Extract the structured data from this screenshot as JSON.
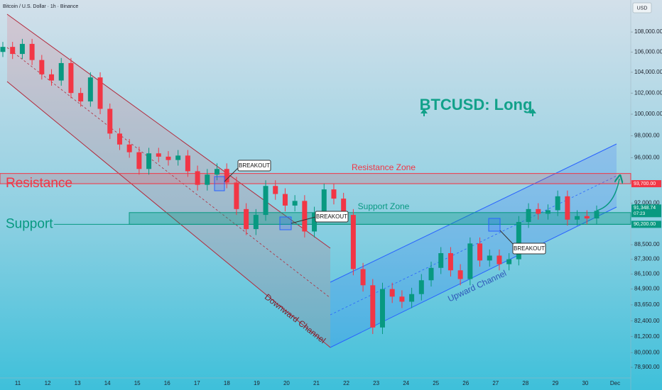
{
  "chart_data": {
    "type": "candlestick",
    "title": "Bitcoin / U.S. Dollar · 1h · Binance",
    "currency": "USD",
    "headline": "BTCUSD: Long",
    "log_scale": true,
    "categories": [
      "11",
      "12",
      "13",
      "14",
      "15",
      "16",
      "17",
      "18",
      "19",
      "20",
      "21",
      "22",
      "23",
      "24",
      "25",
      "26",
      "27",
      "28",
      "29",
      "30",
      "Dec"
    ],
    "ylim": [
      78120,
      111280
    ],
    "yticks": [
      {
        "value": 108000,
        "label": "108,000.00"
      },
      {
        "value": 106000,
        "label": "106,000.00"
      },
      {
        "value": 104000,
        "label": "104,000.00"
      },
      {
        "value": 102000,
        "label": "102,000.00"
      },
      {
        "value": 100000,
        "label": "100,000.00"
      },
      {
        "value": 98000,
        "label": "98,000.00"
      },
      {
        "value": 96000,
        "label": "96,000.00"
      },
      {
        "value": 92000,
        "label": "92,000.00"
      },
      {
        "value": 88500,
        "label": "88,500.00"
      },
      {
        "value": 87300,
        "label": "87,300.00"
      },
      {
        "value": 86100,
        "label": "86,100.00"
      },
      {
        "value": 84900,
        "label": "84,900.00"
      },
      {
        "value": 83650,
        "label": "83,650.00"
      },
      {
        "value": 82400,
        "label": "82,400.00"
      },
      {
        "value": 81200,
        "label": "81,200.00"
      },
      {
        "value": 80000,
        "label": "80,000.00"
      },
      {
        "value": 78900,
        "label": "78,900.00"
      }
    ],
    "up_color": "#089981",
    "down_color": "#f23645",
    "open": [
      106000,
      106500,
      105800,
      106800,
      105200,
      103800,
      103200,
      104900,
      102000,
      101200,
      103500,
      100500,
      98200,
      97200,
      96500,
      95000,
      96400,
      96100,
      95800,
      96200,
      94800,
      93600,
      94500,
      95000,
      93800,
      91500,
      89800,
      91000,
      93500,
      92800,
      91800,
      92200,
      89600,
      91200,
      93200,
      92400,
      91000,
      86500,
      85200,
      81900,
      84900,
      84300,
      83900,
      84500,
      85600,
      86600,
      87800,
      86400,
      85700,
      88600,
      87200,
      87600,
      86900,
      87300,
      90400,
      91500,
      91100,
      91400,
      92600,
      90600,
      90900,
      90700
    ],
    "high": [
      107000,
      107000,
      107300,
      107300,
      105700,
      104300,
      105400,
      105400,
      102500,
      104000,
      104000,
      101000,
      98700,
      97700,
      97000,
      96900,
      96900,
      96600,
      96700,
      96700,
      95300,
      95000,
      95500,
      95500,
      94300,
      92000,
      91500,
      94000,
      94000,
      93300,
      92700,
      92700,
      91700,
      93700,
      93700,
      92900,
      91500,
      87000,
      85700,
      85400,
      85400,
      84800,
      85000,
      86100,
      87100,
      88300,
      88300,
      86900,
      89100,
      89100,
      88100,
      88100,
      87800,
      90900,
      92000,
      92000,
      91900,
      93100,
      93100,
      91400,
      91400,
      91800
    ],
    "low": [
      105500,
      105300,
      105300,
      104700,
      103300,
      102700,
      102700,
      101500,
      100700,
      100700,
      100000,
      97700,
      96700,
      96000,
      94500,
      94500,
      95600,
      95300,
      95300,
      94300,
      93100,
      93100,
      94000,
      93300,
      91000,
      89300,
      89300,
      90500,
      92300,
      91300,
      91300,
      89100,
      89100,
      90700,
      91900,
      90500,
      86000,
      84700,
      81400,
      81400,
      83800,
      83400,
      83400,
      84000,
      85100,
      86100,
      85900,
      85200,
      85200,
      86700,
      86700,
      86400,
      86400,
      86800,
      89900,
      90600,
      90600,
      90900,
      90100,
      90100,
      90200,
      90200
    ],
    "close": [
      106500,
      105800,
      106800,
      105200,
      103800,
      103200,
      104900,
      102000,
      101200,
      103500,
      100500,
      98200,
      97200,
      96500,
      95000,
      96400,
      96100,
      95800,
      96200,
      94800,
      93600,
      94500,
      95000,
      93800,
      91500,
      89800,
      91000,
      93500,
      92800,
      91800,
      92200,
      89600,
      91200,
      93200,
      92400,
      91000,
      86500,
      85200,
      81900,
      84900,
      84300,
      83900,
      84500,
      85600,
      86600,
      87800,
      86400,
      85700,
      88600,
      87200,
      87600,
      86900,
      87300,
      90400,
      91500,
      91100,
      91400,
      92600,
      90600,
      90900,
      90700,
      91348.74
    ],
    "resistance": {
      "label": "Resistance",
      "zone_label": "Resistance Zone",
      "low": 93700,
      "high": 94600,
      "tag": "93,700.00",
      "color": "#f23645"
    },
    "support": {
      "label": "Support",
      "zone_label": "Support Zone",
      "low": 90200,
      "high": 91200,
      "tag": "90,200.00",
      "color": "#089981"
    },
    "last_price": {
      "value": 91348.74,
      "label": "91,348.74",
      "countdown": "07:23"
    },
    "annotations": [
      "BREAKOUT",
      "BREAKOUT",
      "BREAKOUT",
      "Downward Channel",
      "Upward Channel"
    ]
  }
}
